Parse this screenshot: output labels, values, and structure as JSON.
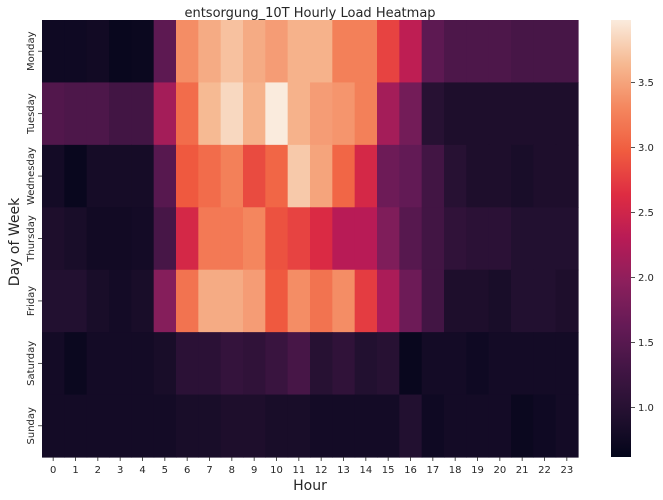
{
  "chart_data": {
    "type": "heatmap",
    "title": "entsorgung_10T Hourly Load Heatmap",
    "xlabel": "Hour",
    "ylabel": "Day of Week",
    "x_categories": [
      "0",
      "1",
      "2",
      "3",
      "4",
      "5",
      "6",
      "7",
      "8",
      "9",
      "10",
      "11",
      "12",
      "13",
      "14",
      "15",
      "16",
      "17",
      "18",
      "19",
      "20",
      "21",
      "22",
      "23"
    ],
    "y_categories": [
      "Monday",
      "Tuesday",
      "Wednesday",
      "Thursday",
      "Friday",
      "Saturday",
      "Sunday"
    ],
    "values": [
      [
        0.75,
        0.75,
        0.78,
        0.68,
        0.7,
        1.55,
        3.35,
        3.55,
        3.7,
        3.55,
        3.45,
        3.6,
        3.6,
        3.25,
        3.25,
        2.8,
        2.35,
        1.55,
        1.4,
        1.4,
        1.4,
        1.35,
        1.35,
        1.35
      ],
      [
        1.45,
        1.4,
        1.4,
        1.3,
        1.3,
        2.15,
        3.1,
        3.65,
        3.85,
        3.6,
        3.98,
        3.6,
        3.45,
        3.4,
        3.25,
        2.15,
        1.75,
        1.0,
        0.9,
        0.9,
        0.9,
        0.9,
        0.9,
        0.9
      ],
      [
        0.8,
        0.68,
        0.82,
        0.82,
        0.82,
        1.5,
        2.95,
        3.1,
        3.25,
        2.85,
        3.05,
        3.75,
        3.5,
        3.05,
        2.55,
        1.7,
        1.6,
        1.3,
        1.0,
        0.9,
        0.9,
        0.85,
        0.9,
        0.9
      ],
      [
        0.9,
        0.85,
        0.78,
        0.78,
        0.8,
        1.35,
        2.55,
        3.2,
        3.2,
        3.3,
        2.9,
        2.8,
        2.6,
        2.3,
        2.3,
        1.85,
        1.5,
        1.3,
        1.1,
        1.05,
        1.05,
        0.95,
        0.95,
        0.95
      ],
      [
        0.95,
        0.95,
        0.85,
        0.8,
        0.85,
        1.9,
        3.15,
        3.55,
        3.55,
        3.45,
        2.95,
        3.35,
        3.15,
        3.35,
        2.75,
        2.2,
        1.7,
        1.3,
        0.9,
        0.9,
        0.85,
        0.95,
        0.95,
        0.9
      ],
      [
        0.8,
        0.7,
        0.8,
        0.8,
        0.8,
        0.85,
        1.05,
        1.05,
        1.15,
        1.1,
        1.2,
        1.35,
        1.0,
        1.1,
        0.95,
        1.0,
        0.68,
        0.8,
        0.8,
        0.75,
        0.8,
        0.8,
        0.8,
        0.8
      ],
      [
        0.8,
        0.8,
        0.8,
        0.8,
        0.8,
        0.8,
        0.85,
        0.85,
        0.9,
        0.9,
        0.85,
        0.85,
        0.8,
        0.8,
        0.8,
        0.8,
        0.95,
        0.75,
        0.8,
        0.8,
        0.8,
        0.7,
        0.75,
        0.8
      ]
    ],
    "colorbar": {
      "ticks": [
        "1.0",
        "1.5",
        "2.0",
        "2.5",
        "3.0",
        "3.5"
      ],
      "vmin": 0.62,
      "vmax": 3.98,
      "colormap": "rocket"
    },
    "grid": false
  }
}
